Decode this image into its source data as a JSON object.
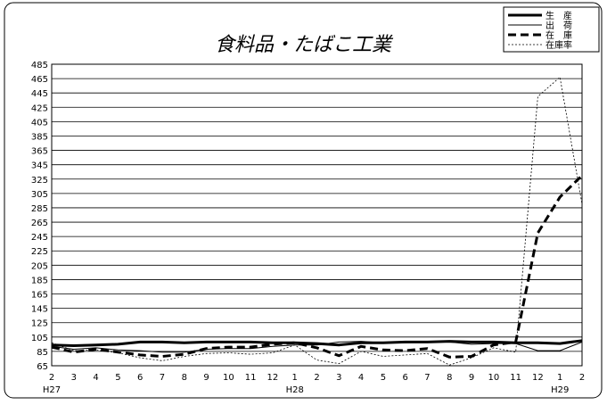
{
  "chart_data": {
    "type": "line",
    "title": "食料品・たばこ工業",
    "x_labels": [
      "2",
      "3",
      "4",
      "5",
      "6",
      "7",
      "8",
      "9",
      "10",
      "11",
      "12",
      "1",
      "2",
      "3",
      "4",
      "5",
      "6",
      "7",
      "8",
      "9",
      "10",
      "11",
      "12",
      "1",
      "2"
    ],
    "x_year_labels": [
      {
        "index": 0,
        "label": "H27"
      },
      {
        "index": 11,
        "label": "H28"
      },
      {
        "index": 23,
        "label": "H29"
      }
    ],
    "y_ticks": [
      65,
      85,
      105,
      125,
      145,
      165,
      185,
      205,
      225,
      245,
      265,
      285,
      305,
      325,
      345,
      365,
      385,
      405,
      425,
      445,
      465,
      485
    ],
    "ylim": [
      65,
      485
    ],
    "grid": true,
    "legend_position": "top-right",
    "series": [
      {
        "name": "生　産",
        "style": "thick-solid",
        "values": [
          94,
          93,
          94,
          95,
          98,
          98,
          97,
          98,
          98,
          98,
          97,
          97,
          96,
          94,
          97,
          97,
          98,
          98,
          99,
          98,
          98,
          97,
          97,
          96,
          100
        ]
      },
      {
        "name": "出　荷",
        "style": "thin-solid",
        "values": [
          92,
          88,
          90,
          87,
          86,
          84,
          84,
          88,
          89,
          89,
          92,
          94,
          94,
          98,
          99,
          97,
          97,
          98,
          98,
          95,
          96,
          96,
          86,
          86,
          98
        ]
      },
      {
        "name": "在　庫",
        "style": "thick-dashed",
        "values": [
          91,
          84,
          88,
          84,
          80,
          78,
          81,
          89,
          91,
          91,
          95,
          97,
          90,
          79,
          92,
          87,
          86,
          89,
          77,
          78,
          94,
          98,
          250,
          300,
          330
        ]
      },
      {
        "name": "在庫率",
        "style": "thin-dotted",
        "values": [
          97,
          86,
          87,
          83,
          76,
          72,
          78,
          82,
          83,
          81,
          83,
          94,
          73,
          68,
          85,
          78,
          80,
          82,
          66,
          76,
          90,
          84,
          440,
          467,
          290
        ]
      }
    ]
  }
}
